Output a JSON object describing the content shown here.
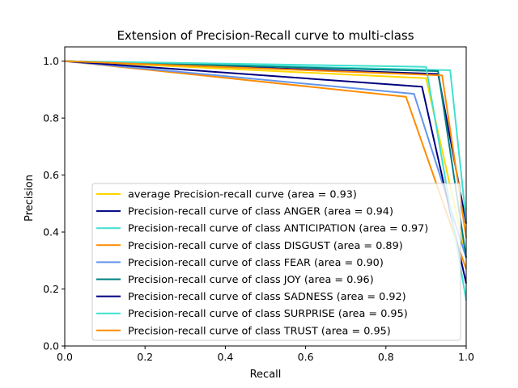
{
  "chart_data": {
    "type": "line",
    "title": "Extension of Precision-Recall curve to multi-class",
    "xlabel": "Recall",
    "ylabel": "Precision",
    "xlim": [
      0,
      1
    ],
    "ylim": [
      0,
      1.05
    ],
    "xticks": [
      "0.0",
      "0.2",
      "0.4",
      "0.6",
      "0.8",
      "1.0"
    ],
    "yticks": [
      "0.0",
      "0.2",
      "0.4",
      "0.6",
      "0.8",
      "1.0"
    ],
    "grid": false,
    "legend_position": "lower-right",
    "series": [
      {
        "name": "average Precision-recall curve (area = 0.93)",
        "color": "#ffd700",
        "x": [
          0,
          0.9,
          1.0
        ],
        "y": [
          1.0,
          0.94,
          0.31
        ]
      },
      {
        "name": "Precision-recall curve of class ANGER (area = 0.94)",
        "color": "#000080",
        "x": [
          0,
          0.93,
          1.0
        ],
        "y": [
          1.0,
          0.955,
          0.43
        ]
      },
      {
        "name": "Precision-recall curve of class ANTICIPATION (area = 0.97)",
        "color": "#40e0d0",
        "x": [
          0,
          0.96,
          1.0
        ],
        "y": [
          1.0,
          0.968,
          0.44
        ]
      },
      {
        "name": "Precision-recall curve of class DISGUST (area = 0.89)",
        "color": "#ff8c00",
        "x": [
          0,
          0.85,
          1.0
        ],
        "y": [
          1.0,
          0.875,
          0.27
        ]
      },
      {
        "name": "Precision-recall curve of class FEAR (area = 0.90)",
        "color": "#6495ed",
        "x": [
          0,
          0.87,
          1.0
        ],
        "y": [
          1.0,
          0.885,
          0.31
        ]
      },
      {
        "name": "Precision-recall curve of class JOY (area = 0.96)",
        "color": "#008080",
        "x": [
          0,
          0.93,
          1.0
        ],
        "y": [
          1.0,
          0.965,
          0.31
        ]
      },
      {
        "name": "Precision-recall curve of class SADNESS (area = 0.92)",
        "color": "#000080",
        "x": [
          0,
          0.89,
          1.0
        ],
        "y": [
          1.0,
          0.91,
          0.22
        ]
      },
      {
        "name": "Precision-recall curve of class SURPRISE (area = 0.95)",
        "color": "#40e0d0",
        "x": [
          0,
          0.9,
          1.0
        ],
        "y": [
          1.0,
          0.98,
          0.16
        ]
      },
      {
        "name": "Precision-recall curve of class TRUST (area = 0.95)",
        "color": "#ff8c00",
        "x": [
          0,
          0.94,
          1.0
        ],
        "y": [
          1.0,
          0.95,
          0.38
        ]
      }
    ]
  }
}
